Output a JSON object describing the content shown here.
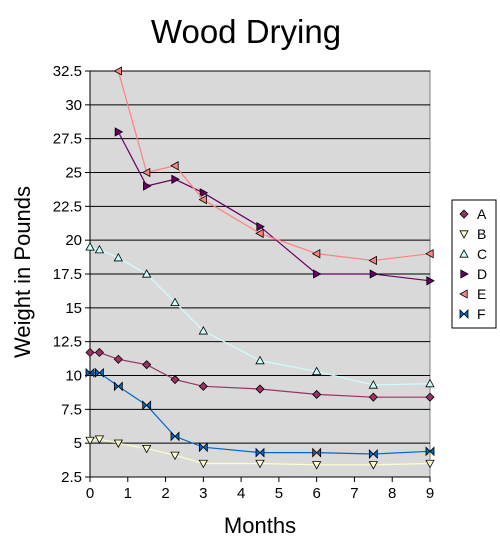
{
  "chart_data": {
    "type": "line",
    "title": "Wood Drying",
    "xlabel": "Months",
    "ylabel": "Weight in Pounds",
    "xlim": [
      0,
      9
    ],
    "ylim": [
      2.5,
      32.5
    ],
    "x_ticks": [
      "0",
      "1",
      "2",
      "3",
      "4",
      "5",
      "6",
      "7",
      "8",
      "9"
    ],
    "y_ticks": [
      "2.5",
      "5",
      "7.5",
      "10",
      "12.5",
      "15",
      "17.5",
      "20",
      "22.5",
      "25",
      "27.5",
      "30",
      "32.5"
    ],
    "grid": "horizontal",
    "background": "#d9d9d9",
    "legend_position": "right",
    "series": [
      {
        "name": "A",
        "marker": "diamond",
        "color": "#993366",
        "line_color": "#993366",
        "x": [
          0,
          0.25,
          0.75,
          1.5,
          2.25,
          3.0,
          4.5,
          6.0,
          7.5,
          9.0
        ],
        "y": [
          11.7,
          11.7,
          11.2,
          10.8,
          9.7,
          9.2,
          9.0,
          8.6,
          8.4,
          8.4
        ]
      },
      {
        "name": "B",
        "marker": "triangle-down",
        "color": "#ffffcc",
        "line_color": "#ffffcc",
        "x": [
          0,
          0.25,
          0.75,
          1.5,
          2.25,
          3.0,
          4.5,
          6.0,
          7.5,
          9.0
        ],
        "y": [
          5.2,
          5.3,
          5.0,
          4.6,
          4.1,
          3.5,
          3.5,
          3.4,
          3.4,
          3.5
        ]
      },
      {
        "name": "C",
        "marker": "triangle-up",
        "color": "#ccffff",
        "line_color": "#ccffff",
        "x": [
          0,
          0.25,
          0.75,
          1.5,
          2.25,
          3.0,
          4.5,
          6.0,
          7.5,
          9.0
        ],
        "y": [
          19.5,
          19.3,
          18.7,
          17.5,
          15.4,
          13.3,
          11.1,
          10.3,
          9.3,
          9.4
        ]
      },
      {
        "name": "D",
        "marker": "triangle-right",
        "color": "#660066",
        "line_color": "#660066",
        "x": [
          0.75,
          1.5,
          2.25,
          3.0,
          4.5,
          6.0,
          7.5,
          9.0
        ],
        "y": [
          28.0,
          24.0,
          24.5,
          23.5,
          21.0,
          17.5,
          17.5,
          17.0
        ]
      },
      {
        "name": "E",
        "marker": "triangle-left",
        "color": "#ff8080",
        "line_color": "#ff8080",
        "x": [
          0.75,
          1.5,
          2.25,
          3.0,
          4.5,
          6.0,
          7.5,
          9.0
        ],
        "y": [
          32.5,
          25.0,
          25.5,
          23.0,
          20.5,
          19.0,
          18.5,
          19.0
        ]
      },
      {
        "name": "F",
        "marker": "bowtie",
        "color": "#0066cc",
        "line_color": "#0066cc",
        "x": [
          0,
          0.25,
          0.75,
          1.5,
          2.25,
          3.0,
          4.5,
          6.0,
          7.5,
          9.0
        ],
        "y": [
          10.2,
          10.2,
          9.2,
          7.8,
          5.5,
          4.7,
          4.3,
          4.3,
          4.2,
          4.4
        ]
      }
    ]
  }
}
